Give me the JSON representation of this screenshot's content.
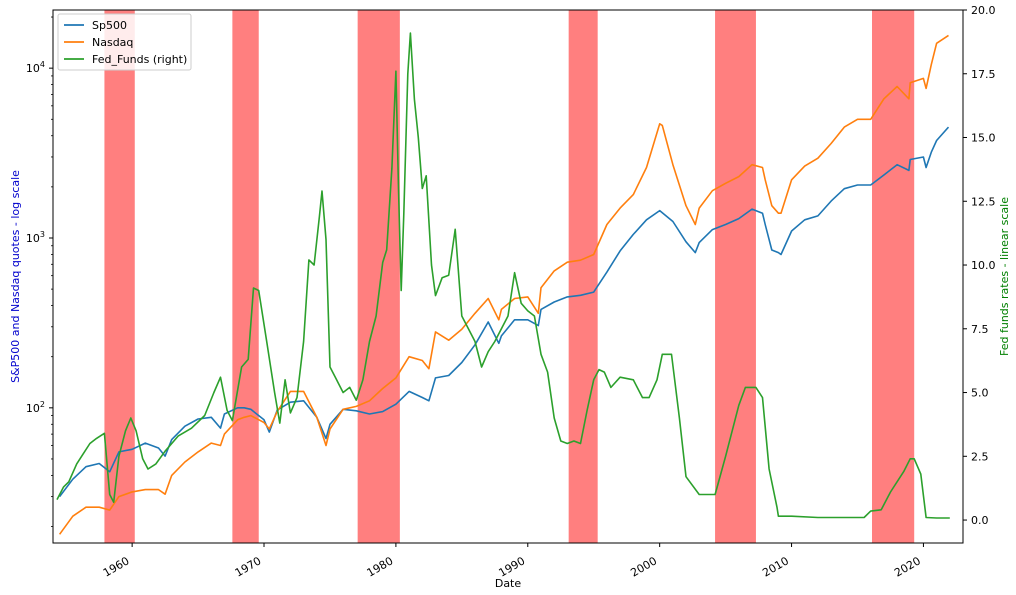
{
  "chart_data": {
    "type": "line",
    "xlabel": "Date",
    "ylabel_left": "S&P500 and Nasdaq quotes - log scale",
    "ylabel_right": "Fed funds rates - linear scale",
    "xlim": [
      1954.0,
      2023.0
    ],
    "ylim_left": [
      16,
      22000
    ],
    "yscale_left": "log",
    "ylim_right": [
      -0.9,
      20.0
    ],
    "yscale_right": "linear",
    "x_ticks": [
      1960,
      1970,
      1980,
      1990,
      2000,
      2010,
      2020
    ],
    "x_tick_labels": [
      "1960",
      "1970",
      "1980",
      "1990",
      "2000",
      "2010",
      "2020"
    ],
    "y_left_ticks": [
      {
        "value": 100,
        "base": "10",
        "exp": "2"
      },
      {
        "value": 1000,
        "base": "10",
        "exp": "3"
      },
      {
        "value": 10000,
        "base": "10",
        "exp": "4"
      }
    ],
    "y_right_ticks": [
      0.0,
      2.5,
      5.0,
      7.5,
      10.0,
      12.5,
      15.0,
      17.5,
      20.0
    ],
    "y_right_tick_labels": [
      "0.0",
      "2.5",
      "5.0",
      "7.5",
      "10.0",
      "12.5",
      "15.0",
      "17.5",
      "20.0"
    ],
    "grid": false,
    "legend": {
      "placement": "top-left",
      "entries": [
        "Sp500",
        "Nasdaq",
        "Fed_Funds (right)"
      ]
    },
    "colors": {
      "sp500": "#1f77b4",
      "nasdaq": "#ff7f0e",
      "fed": "#2ca02c",
      "recession": "#ff0000",
      "left_label": "#0000cd",
      "right_label": "#008000"
    },
    "recessions": [
      [
        1957.9,
        1960.2
      ],
      [
        1967.6,
        1969.6
      ],
      [
        1977.1,
        1980.3
      ],
      [
        1993.1,
        1995.3
      ],
      [
        2004.2,
        2007.3
      ],
      [
        2016.1,
        2019.3
      ]
    ],
    "series": [
      {
        "name": "Sp500",
        "axis": "left",
        "x": [
          1954.5,
          1955.5,
          1956.5,
          1957.5,
          1958.3,
          1959,
          1960,
          1961,
          1962,
          1962.5,
          1963,
          1964,
          1965,
          1966,
          1966.7,
          1967,
          1968,
          1968.5,
          1969,
          1970,
          1970.4,
          1971,
          1972,
          1973,
          1974,
          1974.7,
          1975,
          1976,
          1977,
          1978,
          1979,
          1980,
          1981,
          1982,
          1982.5,
          1983,
          1984,
          1985,
          1986,
          1987,
          1987.8,
          1988,
          1989,
          1990,
          1990.8,
          1991,
          1992,
          1993,
          1994,
          1995,
          1996,
          1997,
          1998,
          1999,
          2000,
          2001,
          2002,
          2002.7,
          2003,
          2004,
          2005,
          2006,
          2007,
          2007.8,
          2008,
          2008.5,
          2009,
          2009.2,
          2010,
          2011,
          2012,
          2013,
          2014,
          2015,
          2016,
          2017,
          2018,
          2018.9,
          2019,
          2020,
          2020.2,
          2020.6,
          2021,
          2021.9
        ],
        "y": [
          30,
          38,
          45,
          47,
          42,
          55,
          57,
          62,
          58,
          52,
          65,
          78,
          86,
          88,
          76,
          92,
          100,
          100,
          98,
          85,
          72,
          97,
          108,
          110,
          88,
          66,
          80,
          98,
          96,
          92,
          95,
          105,
          125,
          115,
          110,
          150,
          155,
          185,
          235,
          320,
          240,
          265,
          330,
          330,
          305,
          380,
          420,
          450,
          460,
          480,
          630,
          840,
          1050,
          1280,
          1450,
          1250,
          950,
          820,
          940,
          1120,
          1200,
          1300,
          1480,
          1400,
          1200,
          850,
          820,
          800,
          1100,
          1280,
          1350,
          1650,
          1950,
          2050,
          2050,
          2350,
          2700,
          2500,
          2900,
          3000,
          2600,
          3200,
          3750,
          4500
        ]
      },
      {
        "name": "Nasdaq",
        "axis": "left",
        "x": [
          1954.5,
          1955.5,
          1956.5,
          1957.5,
          1958.3,
          1959,
          1960,
          1961,
          1962,
          1962.5,
          1963,
          1964,
          1965,
          1966,
          1966.7,
          1967,
          1968,
          1968.5,
          1969,
          1970,
          1970.4,
          1971,
          1972,
          1973,
          1974,
          1974.7,
          1975,
          1976,
          1977,
          1978,
          1979,
          1980,
          1981,
          1982,
          1982.5,
          1983,
          1984,
          1985,
          1986,
          1987,
          1987.8,
          1988,
          1989,
          1990,
          1990.8,
          1991,
          1992,
          1993,
          1994,
          1995,
          1996,
          1997,
          1998,
          1999,
          2000,
          2000.2,
          2001,
          2002,
          2002.7,
          2003,
          2004,
          2005,
          2006,
          2007,
          2007.8,
          2008,
          2008.5,
          2009,
          2009.2,
          2010,
          2011,
          2012,
          2013,
          2014,
          2015,
          2016,
          2017,
          2018,
          2018.9,
          2019,
          2020,
          2020.2,
          2020.6,
          2021,
          2021.9
        ],
        "y": [
          18,
          23,
          26,
          26,
          25,
          30,
          32,
          33,
          33,
          31,
          40,
          48,
          55,
          62,
          60,
          70,
          85,
          88,
          90,
          82,
          75,
          95,
          125,
          125,
          88,
          60,
          75,
          98,
          102,
          110,
          130,
          150,
          200,
          190,
          170,
          280,
          250,
          290,
          360,
          440,
          330,
          380,
          440,
          450,
          360,
          510,
          640,
          720,
          740,
          800,
          1200,
          1500,
          1800,
          2600,
          4700,
          4600,
          2700,
          1550,
          1200,
          1500,
          1900,
          2100,
          2300,
          2700,
          2600,
          2200,
          1550,
          1400,
          1400,
          2200,
          2650,
          2950,
          3600,
          4500,
          5000,
          5000,
          6600,
          7800,
          6600,
          8200,
          8700,
          7600,
          10500,
          14000,
          15600
        ]
      },
      {
        "name": "Fed_Funds (right)",
        "axis": "right",
        "x": [
          1954.3,
          1954.8,
          1955.2,
          1955.8,
          1956.3,
          1956.8,
          1957.3,
          1957.9,
          1958.3,
          1958.6,
          1959,
          1959.5,
          1959.9,
          1960.3,
          1960.8,
          1961.2,
          1961.8,
          1962.5,
          1963.5,
          1964.5,
          1965.5,
          1966.2,
          1966.7,
          1967.2,
          1967.6,
          1968.3,
          1968.8,
          1969.2,
          1969.6,
          1970.2,
          1970.8,
          1971.2,
          1971.6,
          1972,
          1972.5,
          1973,
          1973.4,
          1973.8,
          1974.2,
          1974.4,
          1974.7,
          1975,
          1975.5,
          1976,
          1976.5,
          1977,
          1977.5,
          1978,
          1978.5,
          1979,
          1979.3,
          1979.7,
          1980,
          1980.2,
          1980.4,
          1980.6,
          1980.9,
          1981.1,
          1981.4,
          1981.7,
          1982,
          1982.3,
          1982.7,
          1983,
          1983.5,
          1984,
          1984.5,
          1985,
          1985.5,
          1986,
          1986.5,
          1987,
          1987.5,
          1988,
          1988.5,
          1989,
          1989.5,
          1990,
          1990.5,
          1991,
          1991.5,
          1992,
          1992.5,
          1993,
          1993.5,
          1994,
          1994.5,
          1995,
          1995.4,
          1995.8,
          1996.3,
          1997,
          1998,
          1998.7,
          1999.2,
          1999.8,
          2000.2,
          2000.9,
          2001.5,
          2002,
          2003,
          2003.6,
          2004.2,
          2005,
          2006,
          2006.5,
          2007.3,
          2007.8,
          2008.3,
          2008.9,
          2009,
          2010,
          2012,
          2014,
          2015.5,
          2016,
          2016.8,
          2017.5,
          2018.5,
          2019,
          2019.3,
          2019.8,
          2020.2,
          2021,
          2022
        ],
        "y": [
          0.8,
          1.3,
          1.5,
          2.2,
          2.6,
          3.0,
          3.2,
          3.4,
          1.0,
          0.7,
          2.5,
          3.5,
          4.0,
          3.5,
          2.4,
          2.0,
          2.2,
          2.7,
          3.3,
          3.6,
          4.1,
          5.0,
          5.6,
          4.3,
          3.9,
          6.0,
          6.3,
          9.1,
          9.0,
          7.0,
          5.0,
          3.8,
          5.5,
          4.2,
          4.8,
          7.0,
          10.2,
          10.0,
          11.9,
          12.9,
          11.0,
          6.0,
          5.5,
          5.0,
          5.2,
          4.7,
          5.5,
          7.0,
          8.0,
          10.1,
          10.6,
          13.8,
          17.6,
          13.0,
          9.0,
          12.0,
          17.5,
          19.1,
          16.5,
          15.0,
          13.0,
          13.5,
          10.0,
          8.8,
          9.5,
          9.6,
          11.4,
          8.0,
          7.5,
          7.0,
          6.0,
          6.6,
          7.0,
          7.5,
          8.0,
          9.7,
          8.5,
          8.2,
          8.0,
          6.5,
          5.8,
          4.0,
          3.1,
          3.0,
          3.1,
          3.0,
          4.3,
          5.5,
          5.9,
          5.8,
          5.2,
          5.6,
          5.5,
          4.8,
          4.8,
          5.5,
          6.5,
          6.5,
          4.0,
          1.7,
          1.0,
          1.0,
          1.0,
          2.5,
          4.5,
          5.2,
          5.2,
          4.8,
          2.0,
          0.5,
          0.15,
          0.15,
          0.1,
          0.1,
          0.1,
          0.35,
          0.4,
          1.1,
          1.9,
          2.4,
          2.4,
          1.8,
          0.1,
          0.08,
          0.08
        ]
      }
    ]
  }
}
